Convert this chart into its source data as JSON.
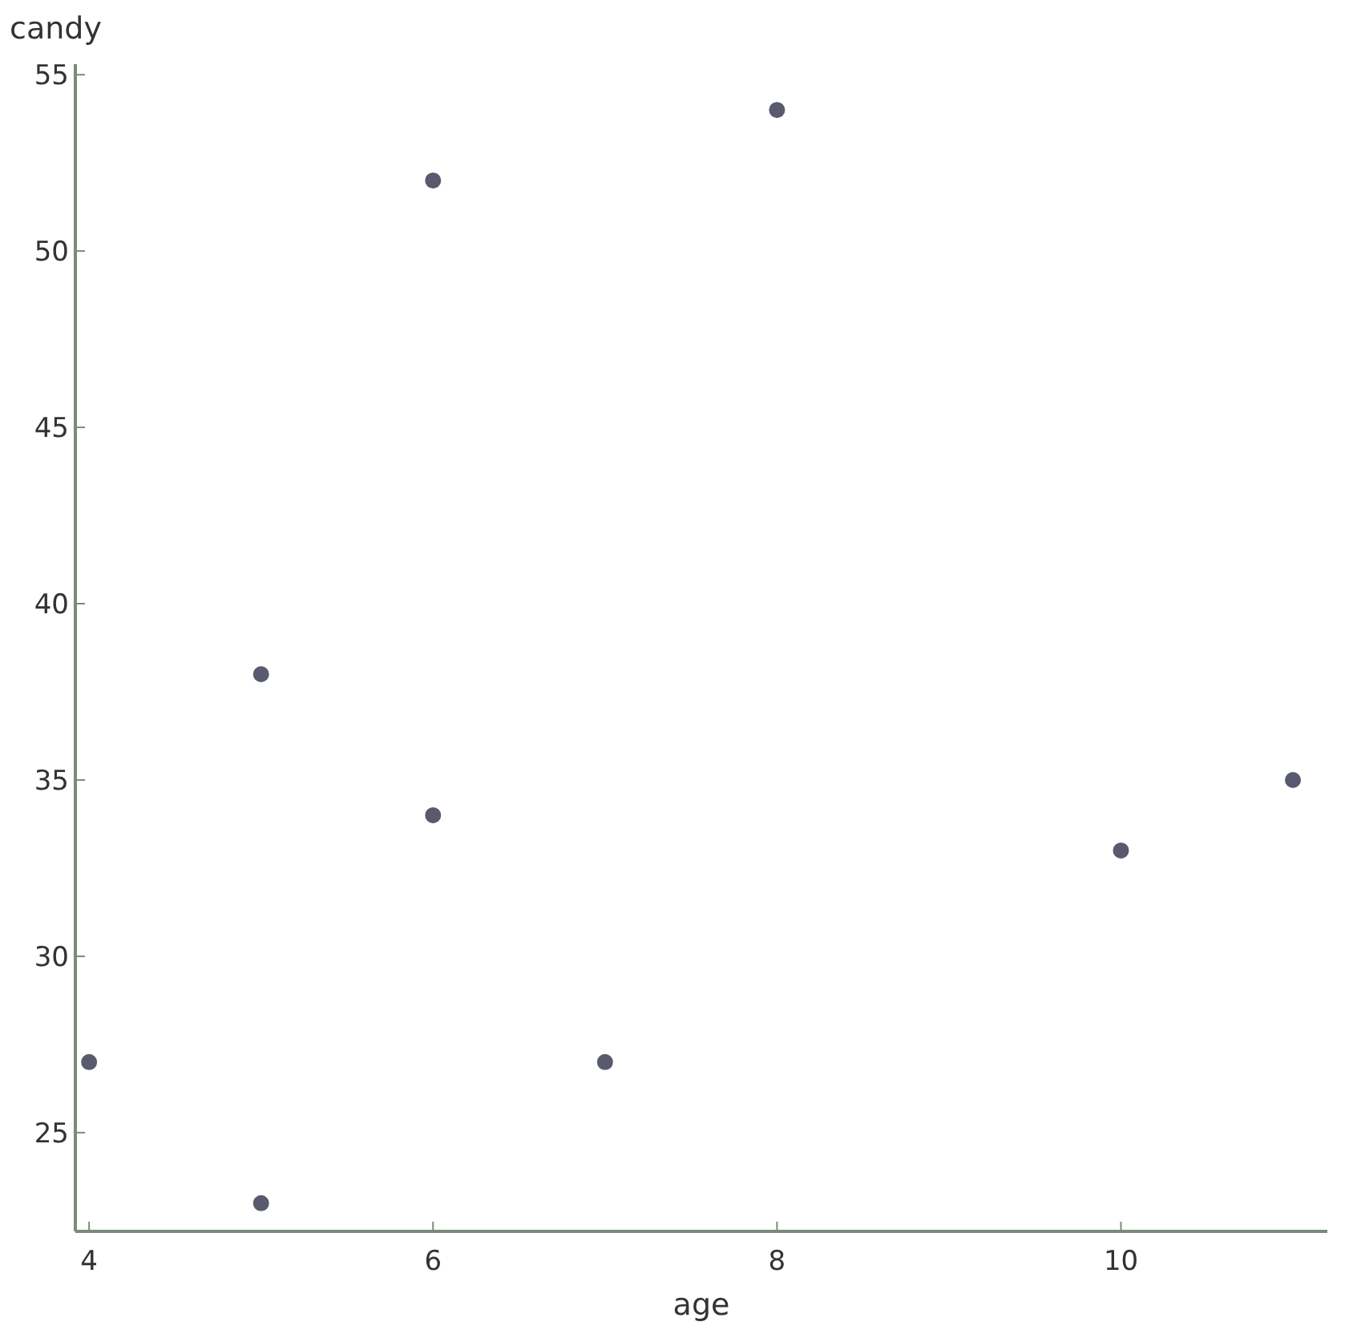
{
  "chart_data": {
    "type": "scatter",
    "xlabel": "age",
    "ylabel": "candy",
    "x": [
      4,
      5,
      5,
      6,
      6,
      7,
      8,
      10,
      11
    ],
    "values": [
      27,
      38,
      23,
      52,
      34,
      27,
      54,
      33,
      35
    ],
    "color": "#5a5a6e",
    "marker": "circle",
    "grid": false,
    "xlim": [
      3.92,
      11.2
    ],
    "ylim": [
      22.2,
      55.3
    ],
    "xticks": [
      4,
      6,
      8,
      10
    ],
    "yticks": [
      25,
      30,
      35,
      40,
      45,
      50,
      55
    ]
  }
}
